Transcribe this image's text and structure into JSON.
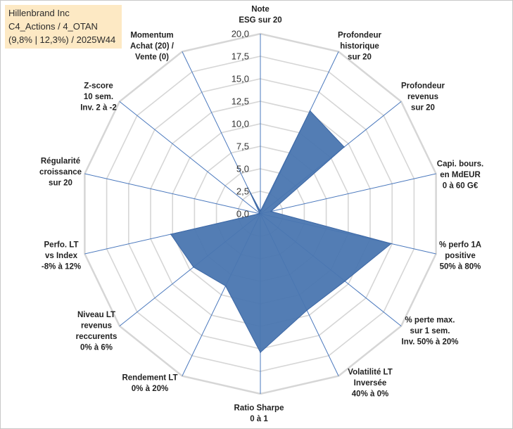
{
  "header": {
    "line1": "Hillenbrand Inc",
    "line2": "C4_Actions / 4_OTAN",
    "line3": "(9,8% | 12,3%) / 2025W44"
  },
  "colors": {
    "fill": "#4a76b0",
    "stroke": "#3c67a5",
    "grid": "#d6d6d6",
    "spoke": "#4a78bd",
    "label_box": "#fde9c4"
  },
  "chart_data": {
    "type": "radar",
    "title": "",
    "rlim": [
      0,
      20
    ],
    "ticks": [
      "0,0",
      "2,5",
      "5,0",
      "7,5",
      "10,0",
      "12,5",
      "15,0",
      "17,5",
      "20,0"
    ],
    "grid": true,
    "categories": [
      "Note|ESG sur 20",
      "Profondeur|historique|sur 20",
      "Profondeur|revenus|sur 20",
      "Capi. bours.|en MdEUR|0 à 60 G€",
      "% perfo 1A|positive|50% à 80%",
      "% perte max.|sur 1 sem.|Inv. 50% à 20%",
      "Volatilité LT|Inversée|40% à 0%",
      "Ratio Sharpe|0 à 1",
      "Rendement LT|0% à 20%",
      "Niveau LT|revenus|reccurents|0% à 6%",
      "Perfo. LT|vs Index|-8% à 12%",
      "Régularité|croissance|sur 20",
      "Z-score|10 sem.|Inv. 2 à -2",
      "Momentum|Achat (20) /|Vente (0)"
    ],
    "series": [
      {
        "name": "Hillenbrand Inc",
        "values": [
          0.3,
          12.7,
          11.9,
          1.2,
          14.9,
          12.0,
          11.9,
          15.4,
          8.9,
          9.5,
          10.2,
          0.1,
          0.1,
          3.2
        ]
      }
    ]
  }
}
